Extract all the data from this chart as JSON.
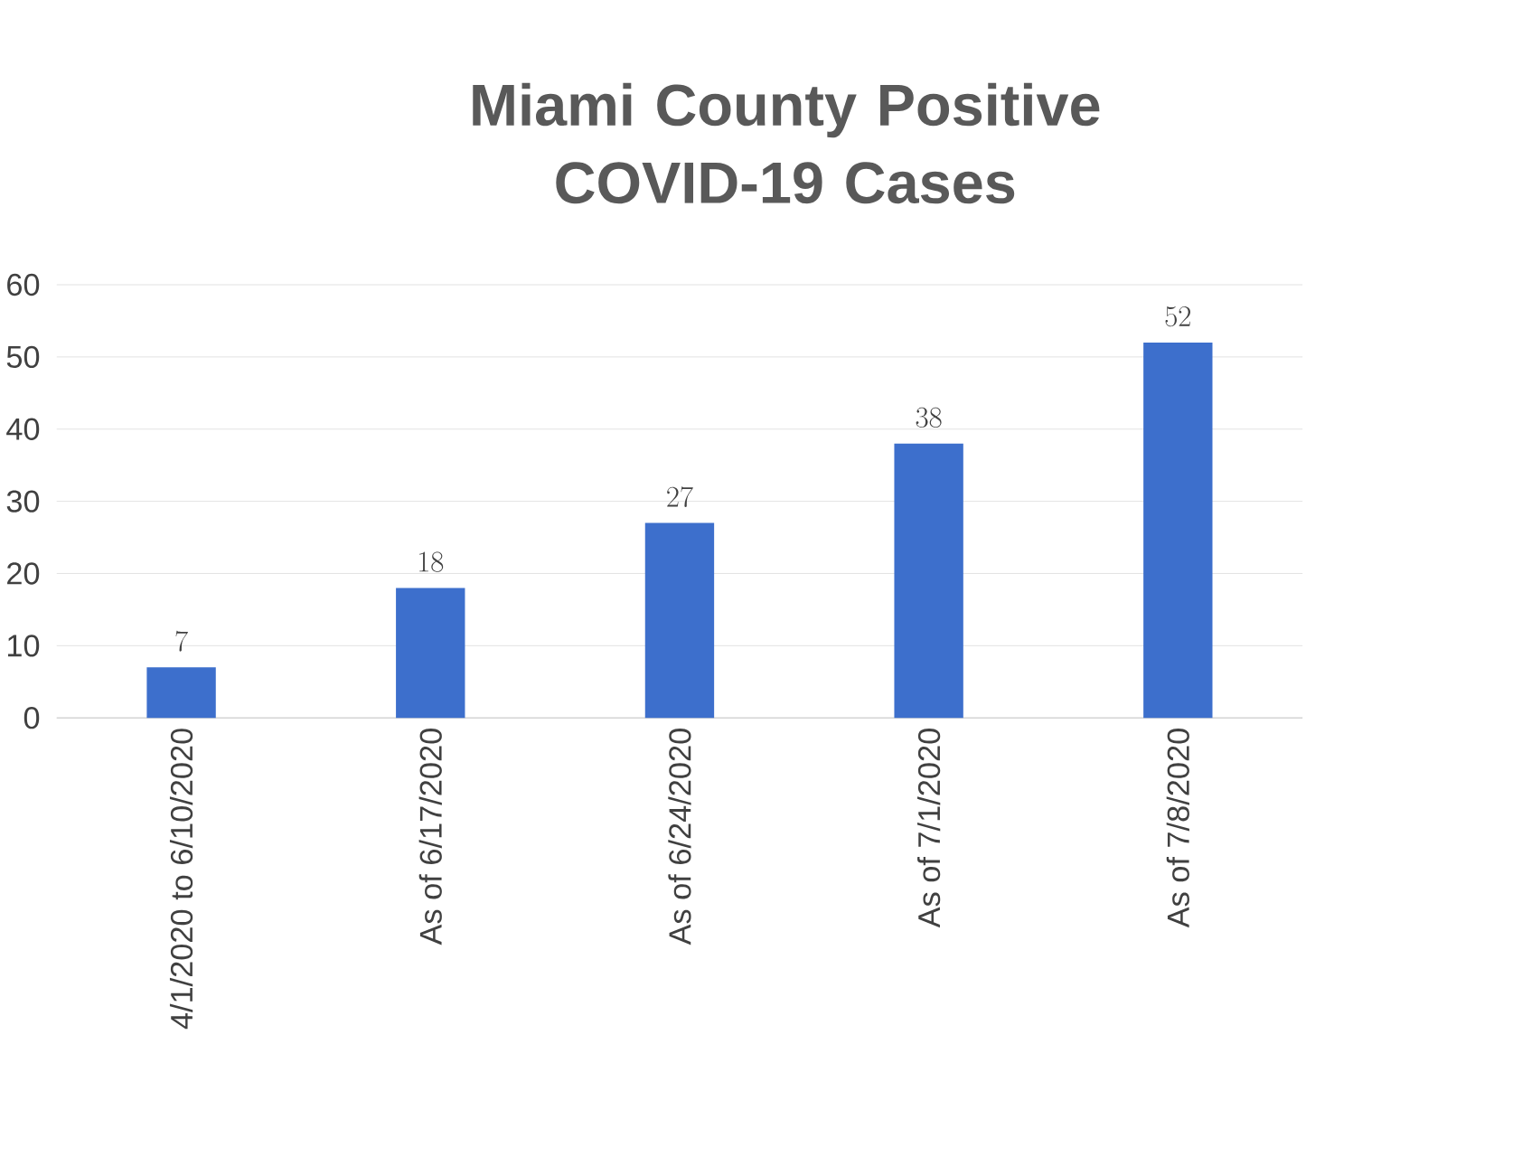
{
  "chart_data": {
    "type": "bar",
    "title": "Miami County Positive COVID-19 Cases",
    "categories": [
      "4/1/2020 to 6/10/2020",
      "As of 6/17/2020",
      "As of 6/24/2020",
      "As of 7/1/2020",
      "As of 7/8/2020"
    ],
    "values": [
      7,
      18,
      27,
      38,
      52
    ],
    "color": "#3d6fcc",
    "ylim": [
      0,
      60
    ],
    "yticks": [
      0,
      10,
      20,
      30,
      40,
      50,
      60
    ],
    "grid": "y",
    "data_labels": true
  }
}
